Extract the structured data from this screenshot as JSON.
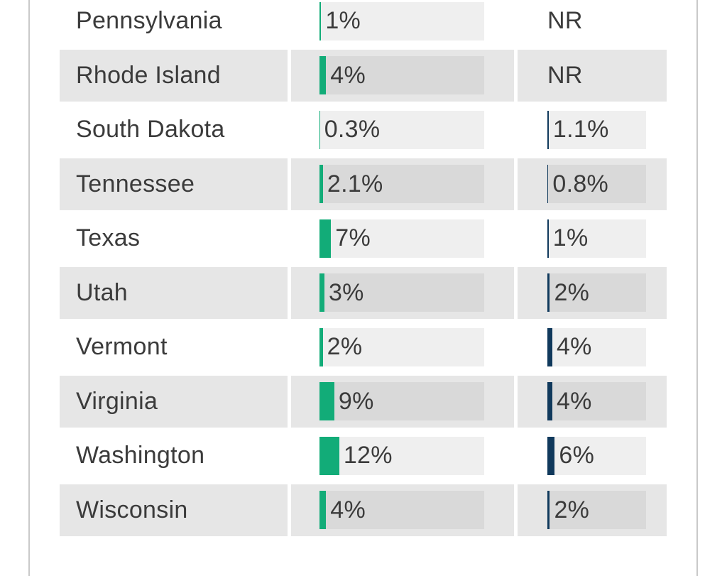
{
  "page": {
    "background": "#ffffff",
    "border_line_color": "#c9c9c9",
    "text_color": "#3b3b3b"
  },
  "colors": {
    "green_bar": "#12ac78",
    "navy_bar": "#10395c",
    "row_alt_bg": "#e6e6e6",
    "row_bg": "#ffffff",
    "track_on_white_row": "#efefef",
    "track_on_gray_row": "#d9d9d9"
  },
  "chart_data": {
    "type": "bar",
    "orientation": "horizontal",
    "layout": "table-with-embedded-bars",
    "grid": false,
    "legend": false,
    "no_data_label": "NR",
    "categories": [
      "Pennsylvania",
      "Rhode Island",
      "South Dakota",
      "Tennessee",
      "Texas",
      "Utah",
      "Vermont",
      "Virginia",
      "Washington",
      "Wisconsin"
    ],
    "series": [
      {
        "name": "green_measure_percent",
        "color": "#12ac78",
        "axis_min": 0,
        "axis_max": 100,
        "values": [
          1,
          4,
          0.3,
          2.1,
          7,
          3,
          2,
          9,
          12,
          4
        ]
      },
      {
        "name": "navy_measure_percent",
        "color": "#10395c",
        "axis_min": 0,
        "axis_max": 80,
        "values": [
          null,
          null,
          1.1,
          0.8,
          1,
          2,
          4,
          4,
          6,
          2
        ]
      }
    ],
    "rows": [
      {
        "state": "Pennsylvania",
        "green_value": 1,
        "green_label": "1%",
        "navy_value": null,
        "navy_label": "NR"
      },
      {
        "state": "Rhode Island",
        "green_value": 4,
        "green_label": "4%",
        "navy_value": null,
        "navy_label": "NR"
      },
      {
        "state": "South Dakota",
        "green_value": 0.3,
        "green_label": "0.3%",
        "navy_value": 1.1,
        "navy_label": "1.1%"
      },
      {
        "state": "Tennessee",
        "green_value": 2.1,
        "green_label": "2.1%",
        "navy_value": 0.8,
        "navy_label": "0.8%"
      },
      {
        "state": "Texas",
        "green_value": 7,
        "green_label": "7%",
        "navy_value": 1,
        "navy_label": "1%"
      },
      {
        "state": "Utah",
        "green_value": 3,
        "green_label": "3%",
        "navy_value": 2,
        "navy_label": "2%"
      },
      {
        "state": "Vermont",
        "green_value": 2,
        "green_label": "2%",
        "navy_value": 4,
        "navy_label": "4%"
      },
      {
        "state": "Virginia",
        "green_value": 9,
        "green_label": "9%",
        "navy_value": 4,
        "navy_label": "4%"
      },
      {
        "state": "Washington",
        "green_value": 12,
        "green_label": "12%",
        "navy_value": 6,
        "navy_label": "6%"
      },
      {
        "state": "Wisconsin",
        "green_value": 4,
        "green_label": "4%",
        "navy_value": 2,
        "navy_label": "2%"
      }
    ]
  }
}
